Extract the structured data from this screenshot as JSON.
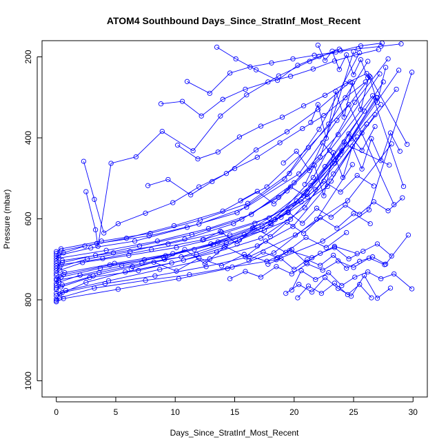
{
  "chart_data": {
    "type": "line",
    "title": "ATOM4 Southbound Days_Since_StratInf_Most_Recent",
    "xlabel": "Days_Since_StratInf_Most_Recent",
    "ylabel": "Pressure (mbar)",
    "xlim": [
      -1.2,
      31.2
    ],
    "ylim": [
      1040,
      160
    ],
    "y_reversed": true,
    "x_ticks": [
      0,
      5,
      10,
      15,
      20,
      25,
      30
    ],
    "y_ticks": [
      200,
      400,
      600,
      800,
      1000
    ],
    "grid": false,
    "legend": "none",
    "color": "#0000ff",
    "marker": "open-circle",
    "series": [
      {
        "x": [
          0.0,
          0.3,
          3.2,
          7.5,
          11.2,
          14.8,
          18.5,
          22.4,
          26.3,
          29.9
        ],
        "y": [
          802,
          795,
          771,
          752,
          738,
          719,
          701,
          655,
          578,
          238
        ]
      },
      {
        "x": [
          0.0,
          0.5,
          4.1,
          8.3,
          12.6,
          16.2,
          20.1,
          24.5,
          28.2
        ],
        "y": [
          790,
          782,
          760,
          741,
          718,
          694,
          640,
          555,
          415
        ]
      },
      {
        "x": [
          0.0,
          0.4,
          2.8,
          6.9,
          10.7,
          14.1,
          18.0,
          21.6,
          25.1,
          27.9
        ],
        "y": [
          775,
          768,
          745,
          728,
          702,
          671,
          612,
          498,
          312,
          205
        ]
      },
      {
        "x": [
          0.0,
          0.2,
          3.6,
          7.2,
          11.8,
          15.4,
          19.7,
          23.3,
          26.8
        ],
        "y": [
          760,
          751,
          733,
          710,
          688,
          652,
          601,
          489,
          343
        ]
      },
      {
        "x": [
          0.0,
          0.6,
          4.5,
          9.0,
          13.2,
          17.5,
          21.1,
          24.2,
          27.5
        ],
        "y": [
          748,
          738,
          714,
          695,
          664,
          628,
          534,
          410,
          262
        ]
      },
      {
        "x": [
          0.0,
          0.3,
          2.2,
          6.1,
          10.1,
          14.6,
          18.9,
          22.8,
          25.7,
          28.6
        ],
        "y": [
          735,
          727,
          708,
          690,
          671,
          640,
          596,
          520,
          388,
          280
        ]
      },
      {
        "x": [
          0.0,
          0.4,
          3.9,
          8.0,
          12.3,
          16.7,
          20.6,
          23.9,
          27.0
        ],
        "y": [
          722,
          713,
          698,
          676,
          652,
          611,
          558,
          441,
          301
        ]
      },
      {
        "x": [
          0.0,
          0.5,
          4.8,
          9.4,
          13.9,
          17.9,
          21.4,
          24.8,
          28.8
        ],
        "y": [
          710,
          703,
          684,
          662,
          633,
          598,
          518,
          402,
          233
        ]
      },
      {
        "x": [
          0.0,
          0.2,
          2.9,
          6.6,
          11.0,
          15.2,
          19.2,
          22.1,
          25.5
        ],
        "y": [
          698,
          690,
          672,
          655,
          621,
          585,
          502,
          379,
          190
        ]
      },
      {
        "x": [
          0.0,
          0.4,
          3.4,
          7.8,
          12.0,
          16.0,
          20.4,
          23.6,
          26.4,
          29.5
        ],
        "y": [
          686,
          679,
          661,
          642,
          613,
          571,
          489,
          357,
          250,
          416
        ]
      },
      {
        "x": [
          0.0,
          0.6,
          5.2,
          10.3,
          14.4,
          18.3,
          21.9,
          24.9
        ],
        "y": [
          805,
          797,
          774,
          748,
          723,
          684,
          601,
          466
        ]
      },
      {
        "x": [
          0.0,
          0.3,
          2.5,
          5.8,
          9.7,
          13.5,
          17.2,
          20.9,
          24.0,
          27.3
        ],
        "y": [
          798,
          786,
          757,
          731,
          709,
          682,
          648,
          573,
          432,
          318
        ]
      },
      {
        "x": [
          0.0,
          0.8,
          4.4,
          8.7,
          12.9,
          16.9,
          19.9,
          23.1,
          26.1
        ],
        "y": [
          784,
          777,
          753,
          725,
          699,
          667,
          619,
          507,
          366
        ]
      },
      {
        "x": [
          0.0,
          0.5,
          3.1,
          6.4,
          10.5,
          14.3,
          18.1,
          21.8,
          25.3
        ],
        "y": [
          771,
          763,
          741,
          718,
          694,
          659,
          612,
          528,
          398
        ]
      },
      {
        "x": [
          0.0,
          0.2,
          2.0,
          5.5,
          9.2,
          13.0,
          16.5,
          20.2,
          23.4,
          26.9
        ],
        "y": [
          765,
          757,
          739,
          716,
          691,
          662,
          623,
          556,
          463,
          300
        ]
      },
      {
        "x": [
          0.0,
          0.4,
          3.7,
          7.4,
          11.6,
          15.8,
          19.5,
          22.6,
          25.9
        ],
        "y": [
          752,
          744,
          722,
          701,
          676,
          639,
          585,
          471,
          334
        ]
      },
      {
        "x": [
          0.0,
          0.7,
          4.9,
          9.8,
          13.6,
          17.3,
          20.8,
          24.4,
          28.0
        ],
        "y": [
          740,
          733,
          710,
          686,
          657,
          618,
          543,
          417,
          467
        ]
      },
      {
        "x": [
          0.0,
          0.3,
          2.6,
          6.2,
          10.8,
          14.9,
          18.7,
          22.2,
          25.0
        ],
        "y": [
          728,
          719,
          699,
          681,
          650,
          612,
          547,
          448,
          187
        ]
      },
      {
        "x": [
          0.0,
          0.5,
          3.3,
          7.0,
          11.4,
          15.6,
          19.4,
          23.0,
          26.6,
          29.2
        ],
        "y": [
          716,
          708,
          690,
          667,
          639,
          601,
          531,
          431,
          296,
          520
        ]
      },
      {
        "x": [
          0.0,
          0.2,
          4.2,
          8.5,
          12.8,
          16.4,
          20.0,
          23.7,
          27.2
        ],
        "y": [
          704,
          697,
          678,
          655,
          624,
          589,
          511,
          392,
          242
        ]
      },
      {
        "x": [
          0.0,
          0.6,
          2.4,
          5.9,
          9.9,
          14.0,
          17.7,
          21.2,
          24.6,
          28.4
        ],
        "y": [
          692,
          684,
          667,
          648,
          617,
          581,
          521,
          424,
          318,
          565
        ]
      },
      {
        "x": [
          0.0,
          0.4,
          3.8,
          7.9,
          12.1,
          16.1,
          19.6,
          22.9,
          26.2
        ],
        "y": [
          681,
          674,
          655,
          636,
          603,
          562,
          488,
          366,
          211
        ]
      },
      {
        "x": [
          2.3,
          3.2,
          4.0,
          5.2,
          7.5,
          9.8,
          12.0,
          14.3,
          16.8,
          19.4,
          22.0,
          24.7
        ],
        "y": [
          458,
          552,
          635,
          612,
          586,
          560,
          521,
          488,
          430,
          385,
          330,
          262
        ]
      },
      {
        "x": [
          2.5,
          3.3,
          3.5,
          4.6,
          6.7,
          8.9,
          11.5,
          13.8,
          16.0,
          18.7,
          21.3,
          23.8
        ],
        "y": [
          533,
          627,
          668,
          463,
          447,
          384,
          432,
          346,
          294,
          247,
          211,
          181
        ]
      },
      {
        "x": [
          8.8,
          10.6,
          12.2,
          14.0,
          15.9,
          17.8,
          19.7,
          21.6,
          23.4,
          25.2,
          27.1
        ],
        "y": [
          316,
          310,
          346,
          305,
          280,
          262,
          248,
          230,
          210,
          195,
          182
        ]
      },
      {
        "x": [
          11.0,
          12.9,
          14.6,
          16.3,
          18.1,
          19.9,
          21.7,
          23.5,
          25.4,
          27.3,
          29.0
        ],
        "y": [
          261,
          290,
          240,
          225,
          215,
          205,
          196,
          188,
          180,
          174,
          168
        ]
      },
      {
        "x": [
          13.5,
          15.1,
          16.8,
          18.6,
          20.3,
          22.1,
          23.9,
          25.6,
          27.4
        ],
        "y": [
          176,
          205,
          232,
          258,
          221,
          199,
          185,
          173,
          166
        ]
      },
      {
        "x": [
          10.2,
          11.9,
          13.6,
          15.4,
          17.2,
          19.0,
          20.8,
          22.6,
          24.3,
          26.1
        ],
        "y": [
          418,
          452,
          435,
          398,
          371,
          349,
          321,
          295,
          266,
          241
        ]
      },
      {
        "x": [
          7.7,
          9.4,
          11.3,
          13.1,
          15.0,
          16.9,
          18.8,
          20.7,
          22.5,
          24.3,
          26.0
        ],
        "y": [
          518,
          503,
          541,
          508,
          476,
          448,
          412,
          377,
          345,
          301,
          262
        ]
      },
      {
        "x": [
          19.3,
          20.4,
          21.5,
          22.6,
          23.7,
          24.8,
          25.9,
          27.0,
          28.1
        ],
        "y": [
          784,
          762,
          781,
          745,
          772,
          791,
          740,
          796,
          771
        ]
      },
      {
        "x": [
          19.8,
          20.6,
          21.8,
          22.9,
          24.0,
          25.1,
          26.2,
          27.3,
          28.4,
          29.9
        ],
        "y": [
          776,
          728,
          750,
          733,
          765,
          744,
          731,
          748,
          736,
          773
        ]
      },
      {
        "x": [
          20.3,
          21.2,
          22.3,
          23.4,
          24.5,
          25.5,
          26.5
        ],
        "y": [
          795,
          766,
          784,
          759,
          787,
          762,
          795
        ]
      },
      {
        "x": [
          17.8,
          18.9,
          20.0,
          21.1,
          22.2,
          23.3,
          24.4,
          25.5,
          26.6,
          27.7,
          29.6
        ],
        "y": [
          712,
          698,
          725,
          701,
          715,
          690,
          722,
          705,
          694,
          712,
          640
        ]
      },
      {
        "x": [
          16.2,
          17.4,
          18.6,
          19.8,
          21.0,
          22.2,
          23.4,
          24.6,
          25.8,
          27.0,
          28.2
        ],
        "y": [
          703,
          682,
          696,
          676,
          708,
          685,
          671,
          699,
          680,
          662,
          692
        ]
      },
      {
        "x": [
          14.6,
          15.9,
          17.2,
          18.5,
          19.8,
          21.1,
          22.4,
          23.7,
          25.0,
          26.3,
          27.6
        ],
        "y": [
          748,
          730,
          744,
          718,
          736,
          711,
          727,
          704,
          720,
          697,
          713
        ]
      },
      {
        "x": [
          18.4,
          19.5,
          20.7,
          21.9,
          23.1,
          24.3,
          25.5,
          26.7,
          27.9,
          29.1
        ],
        "y": [
          602,
          583,
          611,
          574,
          596,
          566,
          589,
          558,
          580,
          548
        ]
      },
      {
        "x": [
          20.9,
          21.7,
          22.5,
          23.3,
          24.1,
          24.9,
          25.7,
          26.5,
          27.3,
          28.1,
          28.9
        ],
        "y": [
          515,
          468,
          543,
          437,
          498,
          421,
          477,
          402,
          456,
          388,
          433
        ]
      },
      {
        "x": [
          21.4,
          22.0,
          22.7,
          23.5,
          24.2,
          24.9,
          25.6,
          26.3,
          27.0,
          27.7
        ],
        "y": [
          362,
          318,
          401,
          285,
          349,
          264,
          330,
          247,
          312,
          226
        ]
      },
      {
        "x": [
          19.1,
          20.2,
          21.3,
          22.4,
          23.5,
          24.6,
          25.7,
          26.8
        ],
        "y": [
          462,
          433,
          481,
          412,
          455,
          390,
          431,
          372
        ]
      },
      {
        "x": [
          22.0,
          22.6,
          23.2,
          23.8,
          24.4,
          25.0,
          25.6,
          26.2
        ],
        "y": [
          171,
          209,
          186,
          231,
          195,
          244,
          207,
          251
        ]
      },
      {
        "x": [
          15.5,
          16.9,
          18.3,
          19.7,
          21.1,
          22.5,
          23.9,
          25.3,
          26.7
        ],
        "y": [
          555,
          532,
          563,
          521,
          546,
          507,
          534,
          493,
          519
        ]
      },
      {
        "x": [
          12.4,
          13.8,
          15.2,
          16.6,
          18.0,
          19.4,
          20.8,
          22.2,
          23.6,
          25.0,
          26.4
        ],
        "y": [
          651,
          631,
          662,
          622,
          644,
          608,
          636,
          597,
          623,
          587,
          612
        ]
      },
      {
        "x": [
          9.1,
          10.8,
          12.5,
          14.2,
          15.9,
          17.6,
          19.3,
          21.0,
          22.7,
          24.4
        ],
        "y": [
          700,
          676,
          711,
          668,
          694,
          655,
          683,
          646,
          671,
          634
        ]
      },
      {
        "x": [
          6.3,
          8.2,
          10.1,
          12.0,
          13.9,
          15.8,
          17.7,
          19.6,
          21.5,
          23.4,
          25.3
        ],
        "y": [
          723,
          707,
          729,
          697,
          716,
          688,
          705,
          679,
          696,
          668,
          686
        ]
      }
    ]
  }
}
